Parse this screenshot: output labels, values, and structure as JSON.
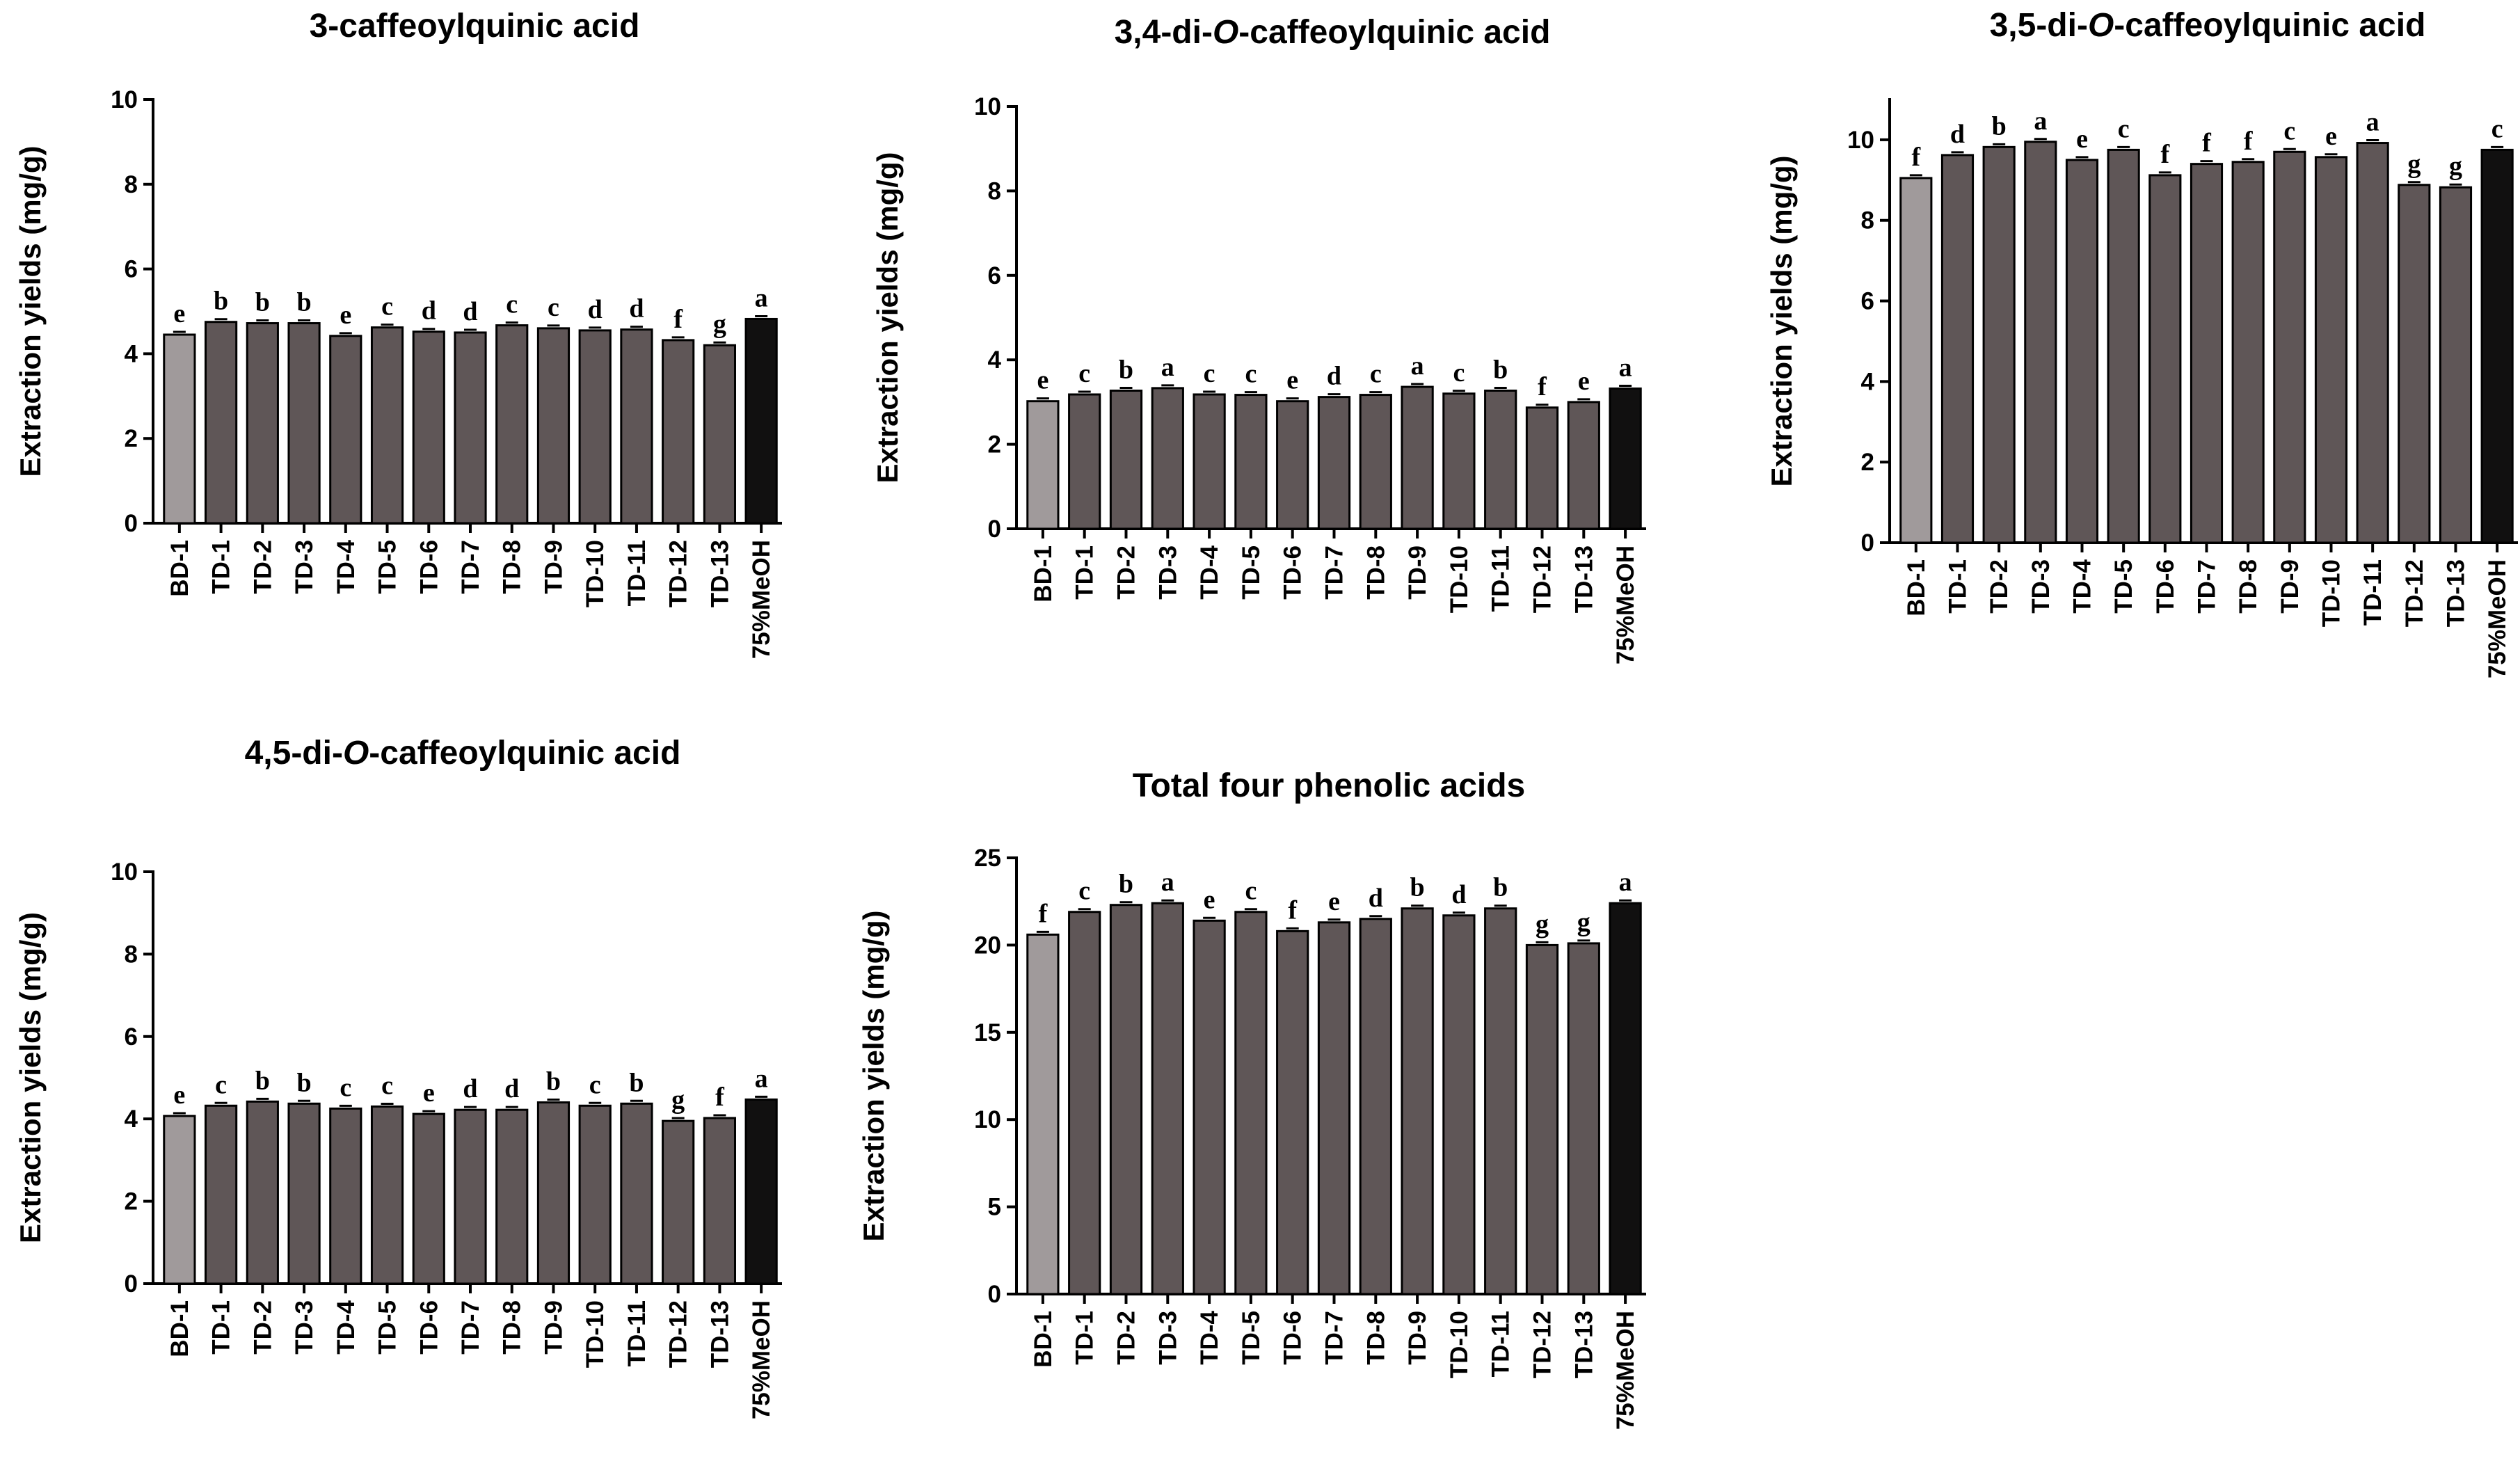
{
  "categories": [
    "BD-1",
    "TD-1",
    "TD-2",
    "TD-3",
    "TD-4",
    "TD-5",
    "TD-6",
    "TD-7",
    "TD-8",
    "TD-9",
    "TD-10",
    "TD-11",
    "TD-12",
    "TD-13",
    "75%MeOH"
  ],
  "colors": {
    "bd": "#a09a9b",
    "td": "#5f5657",
    "meoh": "#111010",
    "axis": "#000000"
  },
  "chart_data": [
    {
      "type": "bar",
      "title_parts": [
        {
          "text": "3-caffeoylquinic acid",
          "italic": false
        }
      ],
      "ylabel": "Extraction yields (mg/g)",
      "ylim": [
        0,
        10
      ],
      "yticks": [
        "0",
        "2",
        "4",
        "6",
        "8",
        "10"
      ],
      "values": [
        4.45,
        4.75,
        4.72,
        4.72,
        4.42,
        4.62,
        4.52,
        4.5,
        4.67,
        4.6,
        4.55,
        4.57,
        4.32,
        4.2,
        4.82
      ],
      "letters": [
        "e",
        "b",
        "b",
        "b",
        "e",
        "c",
        "d",
        "d",
        "c",
        "c",
        "d",
        "d",
        "f",
        "g",
        "a"
      ]
    },
    {
      "type": "bar",
      "title_parts": [
        {
          "text": "3,4-di-",
          "italic": false
        },
        {
          "text": "O",
          "italic": true
        },
        {
          "text": "-caffeoylquinic acid",
          "italic": false
        }
      ],
      "ylabel": "Extraction yields (mg/g)",
      "ylim": [
        0,
        10
      ],
      "yticks": [
        "0",
        "2",
        "4",
        "6",
        "8",
        "10"
      ],
      "values": [
        3.02,
        3.18,
        3.27,
        3.33,
        3.18,
        3.17,
        3.02,
        3.12,
        3.17,
        3.36,
        3.2,
        3.27,
        2.87,
        3.0,
        3.32
      ],
      "letters": [
        "e",
        "c",
        "b",
        "a",
        "c",
        "c",
        "e",
        "d",
        "c",
        "a",
        "c",
        "b",
        "f",
        "e",
        "a"
      ]
    },
    {
      "type": "bar",
      "title_parts": [
        {
          "text": "3,5-di-",
          "italic": false
        },
        {
          "text": "O",
          "italic": true
        },
        {
          "text": "-caffeoylquinic acid",
          "italic": false
        }
      ],
      "ylabel": "Extraction yields (mg/g)",
      "ylim": [
        0,
        11
      ],
      "yticks": [
        "0",
        "2",
        "4",
        "6",
        "8",
        "10"
      ],
      "values": [
        9.05,
        9.62,
        9.82,
        9.95,
        9.5,
        9.75,
        9.12,
        9.4,
        9.45,
        9.7,
        9.57,
        9.92,
        8.88,
        8.82,
        9.75
      ],
      "letters": [
        "f",
        "d",
        "b",
        "a",
        "e",
        "c",
        "f",
        "f",
        "f",
        "c",
        "e",
        "a",
        "g",
        "g",
        "c"
      ]
    },
    {
      "type": "bar",
      "title_parts": [
        {
          "text": "4,5-di-",
          "italic": false
        },
        {
          "text": "O",
          "italic": true
        },
        {
          "text": "-caffeoylquinic acid",
          "italic": false
        }
      ],
      "ylabel": "Extraction yields (mg/g)",
      "ylim": [
        0,
        10
      ],
      "yticks": [
        "0",
        "2",
        "4",
        "6",
        "8",
        "10"
      ],
      "values": [
        4.07,
        4.32,
        4.42,
        4.37,
        4.25,
        4.3,
        4.12,
        4.22,
        4.22,
        4.4,
        4.32,
        4.37,
        3.95,
        4.02,
        4.47
      ],
      "letters": [
        "e",
        "c",
        "b",
        "b",
        "c",
        "c",
        "e",
        "d",
        "d",
        "b",
        "c",
        "b",
        "g",
        "f",
        "a"
      ]
    },
    {
      "type": "bar",
      "title_parts": [
        {
          "text": "Total four phenolic acids",
          "italic": false
        }
      ],
      "ylabel": "Extraction yields (mg/g)",
      "ylim": [
        0,
        25
      ],
      "yticks": [
        "0",
        "5",
        "10",
        "15",
        "20",
        "25"
      ],
      "values": [
        20.6,
        21.9,
        22.3,
        22.4,
        21.4,
        21.9,
        20.8,
        21.3,
        21.5,
        22.1,
        21.7,
        22.1,
        20.0,
        20.1,
        22.4
      ],
      "letters": [
        "f",
        "c",
        "b",
        "a",
        "e",
        "c",
        "f",
        "e",
        "d",
        "b",
        "d",
        "b",
        "g",
        "g",
        "a"
      ]
    }
  ]
}
